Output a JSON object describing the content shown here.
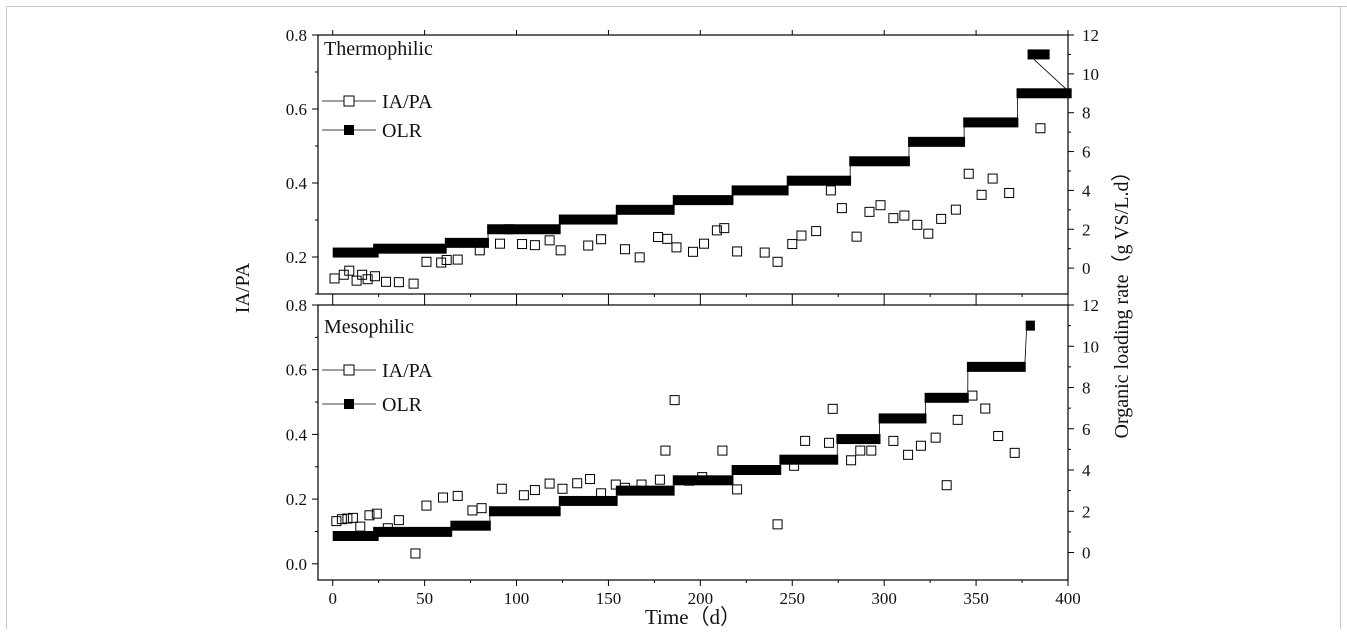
{
  "figure": {
    "x_axis_label": "Time（d）",
    "left_axis_label": "IA/PA",
    "right_axis_label": "Organic loading rate（g VS/L.d）"
  },
  "chart_data": [
    {
      "type": "scatter",
      "panel": "top",
      "title": "Thermophilic",
      "xlabel": "Time（d）",
      "ylabel": "IA/PA",
      "y2label": "Organic loading rate（g VS/L.d）",
      "xlim": [
        -8,
        400
      ],
      "ylim": [
        0.1,
        0.8
      ],
      "y2lim": [
        -1.333,
        12
      ],
      "x_ticks": [
        0,
        50,
        100,
        150,
        200,
        250,
        300,
        350,
        400
      ],
      "y_ticks": [
        0.2,
        0.4,
        0.6,
        0.8
      ],
      "y_tick_labels": [
        "0.2",
        "0.4",
        "0.6",
        "0.8"
      ],
      "y2_ticks": [
        0,
        2,
        4,
        6,
        8,
        10,
        12
      ],
      "legend": {
        "placement": "top-left",
        "entries": [
          "IA/PA",
          "OLR"
        ]
      },
      "series": [
        {
          "name": "IA/PA",
          "axis": "left",
          "marker": "open-square",
          "points": [
            [
              1,
              0.142
            ],
            [
              6,
              0.152
            ],
            [
              9,
              0.163
            ],
            [
              13,
              0.136
            ],
            [
              16,
              0.152
            ],
            [
              19,
              0.14
            ],
            [
              23,
              0.148
            ],
            [
              29,
              0.133
            ],
            [
              36,
              0.132
            ],
            [
              44,
              0.128
            ],
            [
              51,
              0.187
            ],
            [
              59,
              0.185
            ],
            [
              62,
              0.192
            ],
            [
              68,
              0.193
            ],
            [
              80,
              0.218
            ],
            [
              91,
              0.236
            ],
            [
              96,
              0.275
            ],
            [
              103,
              0.235
            ],
            [
              110,
              0.232
            ],
            [
              118,
              0.245
            ],
            [
              124,
              0.218
            ],
            [
              139,
              0.231
            ],
            [
              146,
              0.248
            ],
            [
              159,
              0.221
            ],
            [
              167,
              0.199
            ],
            [
              177,
              0.254
            ],
            [
              182,
              0.249
            ],
            [
              187,
              0.226
            ],
            [
              196,
              0.214
            ],
            [
              202,
              0.236
            ],
            [
              209,
              0.272
            ],
            [
              213,
              0.278
            ],
            [
              220,
              0.215
            ],
            [
              235,
              0.212
            ],
            [
              242,
              0.187
            ],
            [
              250,
              0.235
            ],
            [
              255,
              0.258
            ],
            [
              263,
              0.27
            ],
            [
              271,
              0.38
            ],
            [
              277,
              0.332
            ],
            [
              285,
              0.255
            ],
            [
              292,
              0.322
            ],
            [
              298,
              0.34
            ],
            [
              305,
              0.305
            ],
            [
              311,
              0.312
            ],
            [
              318,
              0.287
            ],
            [
              324,
              0.263
            ],
            [
              331,
              0.303
            ],
            [
              339,
              0.328
            ],
            [
              346,
              0.425
            ],
            [
              353,
              0.368
            ],
            [
              359,
              0.412
            ],
            [
              368,
              0.373
            ],
            [
              385,
              0.548
            ]
          ]
        },
        {
          "name": "OLR",
          "axis": "right",
          "marker": "filled-step",
          "steps": [
            [
              0,
              25,
              0.8
            ],
            [
              22,
              62,
              1.0
            ],
            [
              61,
              85,
              1.3
            ],
            [
              84,
              124,
              2.0
            ],
            [
              123,
              155,
              2.5
            ],
            [
              154,
              186,
              3.0
            ],
            [
              185,
              218,
              3.5
            ],
            [
              217,
              248,
              4.0
            ],
            [
              247,
              282,
              4.5
            ],
            [
              281,
              314,
              5.5
            ],
            [
              313,
              344,
              6.5
            ],
            [
              343,
              373,
              7.5
            ],
            [
              372,
              402,
              9.0
            ],
            [
              378,
              390,
              11.0
            ]
          ]
        }
      ]
    },
    {
      "type": "scatter",
      "panel": "bottom",
      "title": "Mesophilic",
      "xlabel": "Time（d）",
      "ylabel": "IA/PA",
      "y2label": "Organic loading rate（g VS/L.d）",
      "xlim": [
        -8,
        400
      ],
      "ylim": [
        -0.05,
        0.8
      ],
      "y2lim": [
        -1.333,
        12
      ],
      "x_ticks": [
        0,
        50,
        100,
        150,
        200,
        250,
        300,
        350,
        400
      ],
      "y_ticks": [
        0.0,
        0.2,
        0.4,
        0.6,
        0.8
      ],
      "y_tick_labels": [
        "0.0",
        "0.2",
        "0.4",
        "0.6",
        "0.8"
      ],
      "y2_ticks": [
        0,
        2,
        4,
        6,
        8,
        10,
        12
      ],
      "legend": {
        "placement": "top-left",
        "entries": [
          "IA/PA",
          "OLR"
        ]
      },
      "series": [
        {
          "name": "IA/PA",
          "axis": "left",
          "marker": "open-square",
          "points": [
            [
              2,
              0.132
            ],
            [
              5,
              0.138
            ],
            [
              8,
              0.14
            ],
            [
              11,
              0.142
            ],
            [
              15,
              0.115
            ],
            [
              20,
              0.15
            ],
            [
              24,
              0.155
            ],
            [
              30,
              0.11
            ],
            [
              36,
              0.135
            ],
            [
              45,
              0.032
            ],
            [
              51,
              0.18
            ],
            [
              60,
              0.205
            ],
            [
              68,
              0.21
            ],
            [
              76,
              0.165
            ],
            [
              81,
              0.172
            ],
            [
              92,
              0.232
            ],
            [
              104,
              0.212
            ],
            [
              110,
              0.228
            ],
            [
              118,
              0.248
            ],
            [
              125,
              0.232
            ],
            [
              133,
              0.249
            ],
            [
              140,
              0.262
            ],
            [
              146,
              0.218
            ],
            [
              154,
              0.245
            ],
            [
              159,
              0.235
            ],
            [
              168,
              0.245
            ],
            [
              178,
              0.26
            ],
            [
              181,
              0.35
            ],
            [
              186,
              0.506
            ],
            [
              194,
              0.257
            ],
            [
              201,
              0.268
            ],
            [
              212,
              0.35
            ],
            [
              220,
              0.23
            ],
            [
              242,
              0.122
            ],
            [
              251,
              0.303
            ],
            [
              257,
              0.38
            ],
            [
              270,
              0.374
            ],
            [
              272,
              0.479
            ],
            [
              282,
              0.32
            ],
            [
              287,
              0.35
            ],
            [
              293,
              0.35
            ],
            [
              305,
              0.38
            ],
            [
              313,
              0.337
            ],
            [
              320,
              0.365
            ],
            [
              328,
              0.39
            ],
            [
              334,
              0.243
            ],
            [
              340,
              0.445
            ],
            [
              348,
              0.52
            ],
            [
              355,
              0.48
            ],
            [
              362,
              0.395
            ],
            [
              371,
              0.343
            ]
          ]
        },
        {
          "name": "OLR",
          "axis": "right",
          "marker": "filled-step",
          "steps": [
            [
              0,
              25,
              0.8
            ],
            [
              22,
              65,
              1.0
            ],
            [
              64,
              86,
              1.3
            ],
            [
              85,
              124,
              2.0
            ],
            [
              123,
              155,
              2.5
            ],
            [
              154,
              186,
              3.0
            ],
            [
              185,
              218,
              3.5
            ],
            [
              217,
              244,
              4.0
            ],
            [
              243,
              275,
              4.5
            ],
            [
              274,
              298,
              5.5
            ],
            [
              297,
              323,
              6.5
            ],
            [
              322,
              346,
              7.5
            ],
            [
              345,
              377,
              9.0
            ],
            [
              377,
              382,
              11.0
            ]
          ]
        }
      ]
    }
  ]
}
